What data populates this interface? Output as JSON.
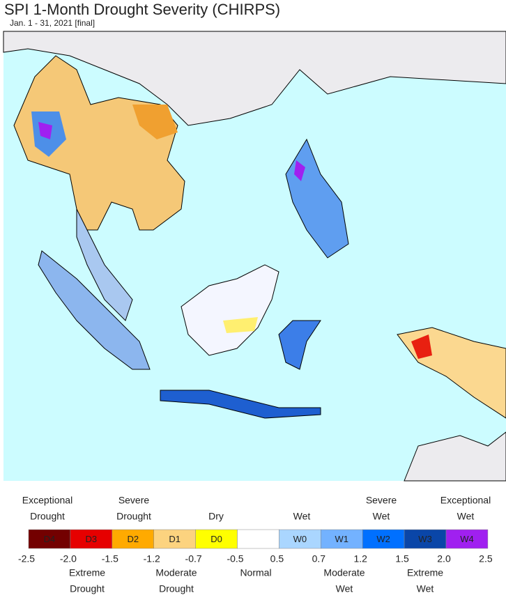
{
  "header": {
    "title": "SPI 1-Month Drought Severity (CHIRPS)",
    "subtitle": "Jan. 1 - 31, 2021 [final]"
  },
  "legend": {
    "classes": [
      {
        "code": "D4",
        "color": "#730000"
      },
      {
        "code": "D3",
        "color": "#e60000"
      },
      {
        "code": "D2",
        "color": "#ffaa00"
      },
      {
        "code": "D1",
        "color": "#fcd37f"
      },
      {
        "code": "D0",
        "color": "#ffff00"
      },
      {
        "color": "#ffffff"
      },
      {
        "code": "W0",
        "color": "#aad6ff"
      },
      {
        "code": "W1",
        "color": "#73b2ff"
      },
      {
        "code": "W2",
        "color": "#0070ff"
      },
      {
        "code": "W3",
        "color": "#0a46a8"
      },
      {
        "code": "W4",
        "color": "#a020f0"
      }
    ],
    "ticks": [
      "-2.5",
      "-2.0",
      "-1.5",
      "-1.2",
      "-0.7",
      "-0.5",
      "0.5",
      "0.7",
      "1.2",
      "1.5",
      "2.0",
      "2.5"
    ],
    "top_labels": [
      [
        "Exceptional",
        "Drought"
      ],
      [
        "Severe",
        "Drought"
      ],
      [
        "Dry"
      ],
      [
        "Wet"
      ],
      [
        "Severe",
        "Wet"
      ],
      [
        "Exceptional",
        "Wet"
      ]
    ],
    "bottom_labels": [
      [
        "Extreme",
        "Drought"
      ],
      [
        "Moderate",
        "Drought"
      ],
      [
        "Normal"
      ],
      [
        "Moderate",
        "Wet"
      ],
      [
        "Extreme",
        "Wet"
      ]
    ]
  }
}
